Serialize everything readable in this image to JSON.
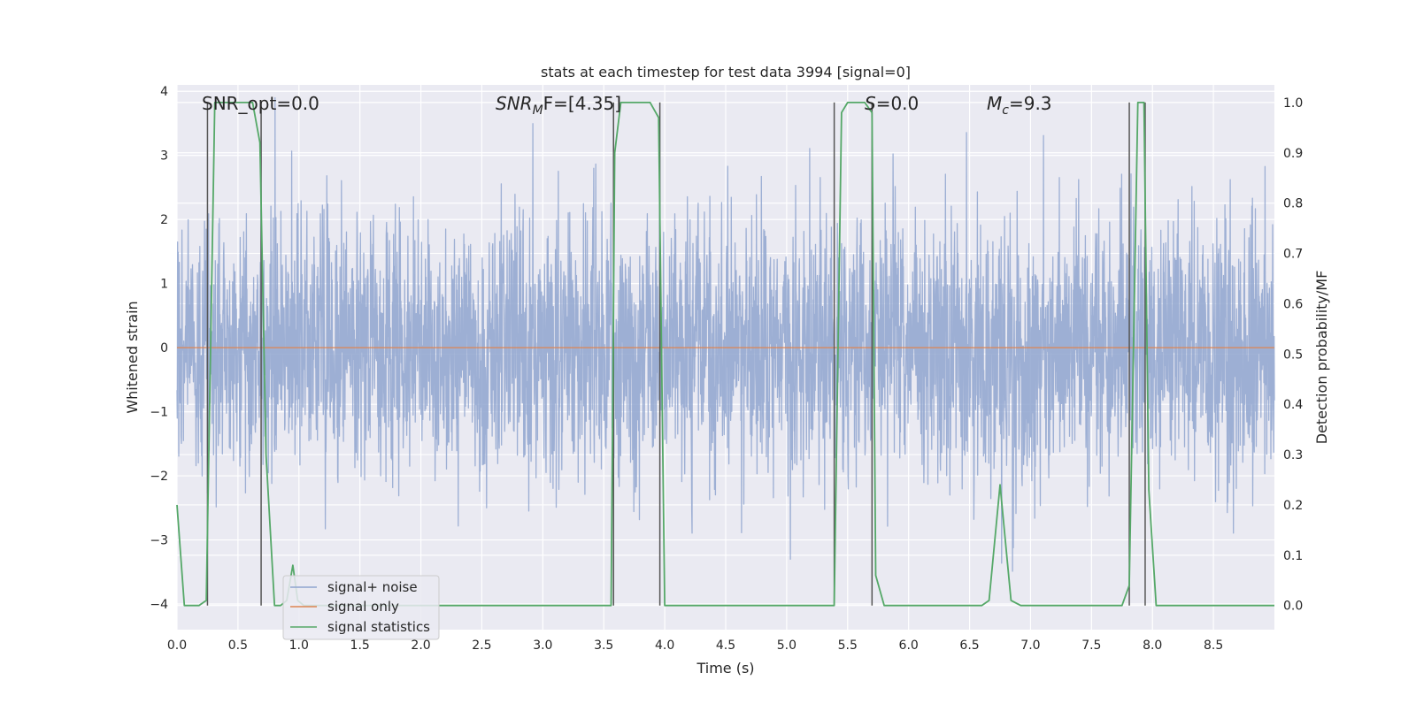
{
  "chart_data": {
    "type": "line",
    "title": "stats at each timestep for test data 3994 [signal=0]",
    "xlabel": "Time (s)",
    "ylabel": "Whitened strain",
    "y2label": "Detection probability/MF",
    "xlim": [
      0.0,
      9.0
    ],
    "ylim": [
      -4.4,
      4.1
    ],
    "y2lim": [
      -0.048,
      1.035
    ],
    "xticks": [
      "0.0",
      "0.5",
      "1.0",
      "1.5",
      "2.0",
      "2.5",
      "3.0",
      "3.5",
      "4.0",
      "4.5",
      "5.0",
      "5.5",
      "6.0",
      "6.5",
      "7.0",
      "7.5",
      "8.0",
      "8.5"
    ],
    "yticks": [
      "−4",
      "−3",
      "−2",
      "−1",
      "0",
      "1",
      "2",
      "3",
      "4"
    ],
    "y2ticks": [
      "0.0",
      "0.1",
      "0.2",
      "0.3",
      "0.4",
      "0.5",
      "0.6",
      "0.7",
      "0.8",
      "0.9",
      "1.0"
    ],
    "grid": true,
    "legend_placement": "lower-left",
    "annotations": {
      "snr_opt": "SNR_opt=0.0",
      "snr_mf_main": "SNR",
      "snr_mf_sub": "M",
      "snr_mf_rest": "F=[4.35]",
      "s_main": "S",
      "s_rest": "=0.0",
      "mc_main": "M",
      "mc_sub": "c",
      "mc_rest": "=9.3"
    },
    "vlines": [
      0.25,
      0.69,
      3.58,
      3.96,
      5.39,
      5.7,
      7.81,
      7.94
    ],
    "series": [
      {
        "name": "signal+ noise",
        "color": "#8fa4cf",
        "noise_std": 1.0,
        "noise_min": -4.0,
        "noise_max": 3.9,
        "noise_spacing": 0.0024
      },
      {
        "name": "signal only",
        "color": "#dd8452",
        "x": [
          0.0,
          9.0
        ],
        "y": [
          0.0,
          0.0
        ]
      },
      {
        "name": "signal statistics",
        "color": "#55a868",
        "axis": "right",
        "x": [
          0.0,
          0.06,
          0.18,
          0.24,
          0.31,
          0.33,
          0.62,
          0.68,
          0.73,
          0.8,
          0.85,
          0.9,
          0.95,
          0.99,
          1.04,
          3.5,
          3.56,
          3.59,
          3.64,
          3.68,
          3.88,
          3.95,
          4.0,
          4.06,
          5.33,
          5.39,
          5.45,
          5.5,
          5.64,
          5.7,
          5.73,
          5.8,
          6.6,
          6.66,
          6.75,
          6.84,
          6.92,
          7.75,
          7.81,
          7.88,
          7.93,
          7.97,
          8.03,
          8.1,
          9.0
        ],
        "y": [
          0.2,
          0.0,
          0.0,
          0.01,
          1.0,
          1.0,
          1.0,
          0.92,
          0.3,
          0.0,
          0.0,
          0.01,
          0.08,
          0.01,
          0.0,
          0.0,
          0.0,
          0.9,
          1.0,
          1.0,
          1.0,
          0.97,
          0.0,
          0.0,
          0.0,
          0.0,
          0.98,
          1.0,
          1.0,
          0.98,
          0.06,
          0.0,
          0.0,
          0.01,
          0.24,
          0.01,
          0.0,
          0.0,
          0.04,
          1.0,
          1.0,
          0.23,
          0.0,
          0.0,
          0.0
        ]
      }
    ]
  }
}
